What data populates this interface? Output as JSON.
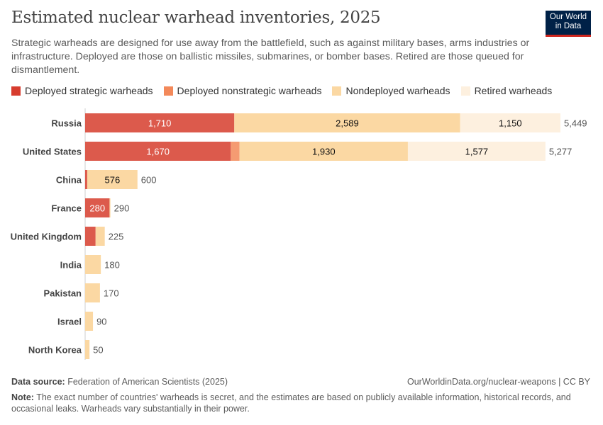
{
  "header": {
    "title": "Estimated nuclear warhead inventories, 2025",
    "subtitle": "Strategic warheads are designed for use away from the battlefield, such as against military bases, arms industries or infrastructure. Deployed are those on ballistic missiles, submarines, or bomber bases. Retired are those queued for dismantlement.",
    "logo": "Our World in Data"
  },
  "chart_data": {
    "type": "bar",
    "stacked": true,
    "orientation": "horizontal",
    "title": "Estimated nuclear warhead inventories, 2025",
    "legend_position": "top",
    "categories": [
      "Russia",
      "United States",
      "China",
      "France",
      "United Kingdom",
      "India",
      "Pakistan",
      "Israel",
      "North Korea"
    ],
    "series": [
      {
        "name": "Deployed strategic warheads",
        "color": "#dc5a4c",
        "values": [
          1710,
          1670,
          24,
          280,
          120,
          0,
          0,
          0,
          0
        ]
      },
      {
        "name": "Deployed nonstrategic warheads",
        "color": "#f59b72",
        "values": [
          0,
          100,
          0,
          0,
          0,
          0,
          0,
          0,
          0
        ]
      },
      {
        "name": "Nondeployed warheads",
        "color": "#fbd8a3",
        "values": [
          2589,
          1930,
          576,
          10,
          105,
          180,
          170,
          90,
          50
        ]
      },
      {
        "name": "Retired warheads",
        "color": "#fdf0df",
        "values": [
          1150,
          1577,
          0,
          0,
          0,
          0,
          0,
          0,
          0
        ]
      }
    ],
    "totals": [
      5449,
      5277,
      600,
      290,
      225,
      180,
      170,
      90,
      50
    ],
    "total_labels": [
      "5,449",
      "5,277",
      "600",
      "290",
      "225",
      "180",
      "170",
      "90",
      "50"
    ],
    "xlim": [
      0,
      5449
    ]
  },
  "footer": {
    "source_label": "Data source:",
    "source": "Federation of American Scientists (2025)",
    "url": "OurWorldinData.org/nuclear-weapons | CC BY",
    "note_label": "Note:",
    "note": "The exact number of countries' warheads is secret, and the estimates are based on publicly available information, historical records, and occasional leaks. Warheads vary substantially in their power."
  }
}
